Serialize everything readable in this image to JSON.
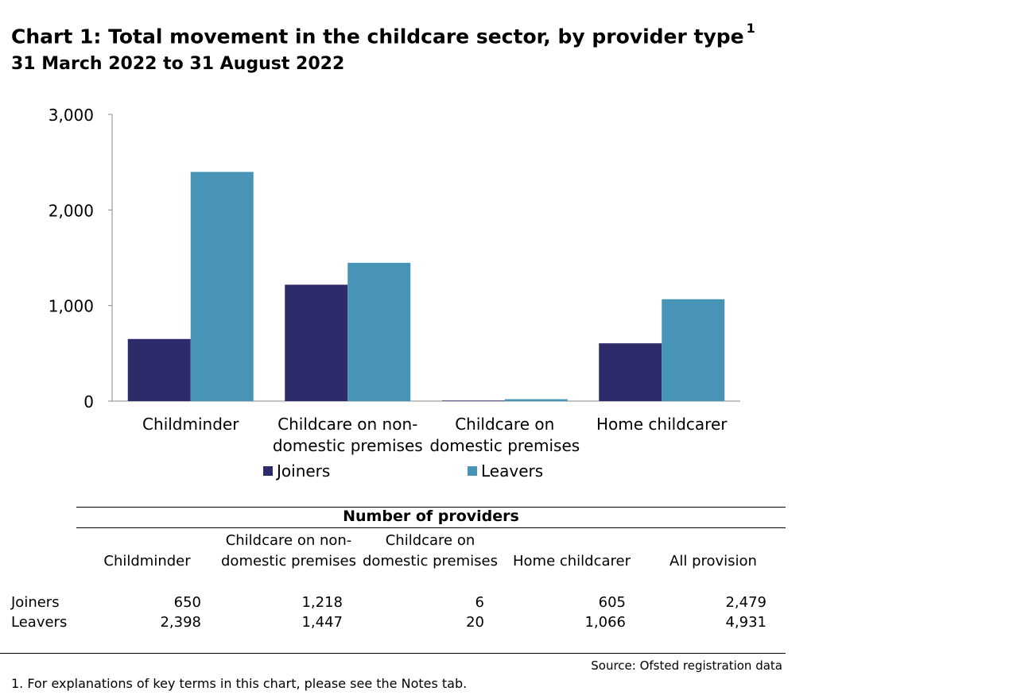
{
  "header": {
    "title": "Chart 1: Total movement in the childcare sector, by provider type",
    "title_sup": "1",
    "subtitle": "31 March 2022 to 31 August 2022"
  },
  "chart_data": {
    "type": "bar",
    "categories": [
      [
        "Childminder"
      ],
      [
        "Childcare on non-",
        "domestic premises"
      ],
      [
        "Childcare on",
        "domestic premises"
      ],
      [
        "Home childcarer"
      ]
    ],
    "series": [
      {
        "name": "Joiners",
        "values": [
          650,
          1218,
          6,
          605
        ],
        "color": "#2e2b6a"
      },
      {
        "name": "Leavers",
        "values": [
          2398,
          1447,
          20,
          1066
        ],
        "color": "#4794b6"
      }
    ],
    "ylim": [
      0,
      3000
    ],
    "yticks": [
      0,
      1000,
      2000,
      3000
    ],
    "ytick_labels": [
      "0",
      "1,000",
      "2,000",
      "3,000"
    ],
    "grid": false,
    "legend_position": "bottom"
  },
  "table": {
    "title": "Number of providers",
    "columns": [
      [
        "Childminder"
      ],
      [
        "Childcare on non-",
        "domestic premises"
      ],
      [
        "Childcare on",
        "domestic premises"
      ],
      [
        "Home childcarer"
      ],
      [
        "All provision"
      ]
    ],
    "rows": [
      {
        "label": "Joiners",
        "values": [
          "650",
          "1,218",
          "6",
          "605",
          "2,479"
        ]
      },
      {
        "label": "Leavers",
        "values": [
          "2,398",
          "1,447",
          "20",
          "1,066",
          "4,931"
        ]
      }
    ]
  },
  "source": "Source: Ofsted registration data",
  "footnote": "1. For explanations of key terms in this chart, please see the Notes tab."
}
